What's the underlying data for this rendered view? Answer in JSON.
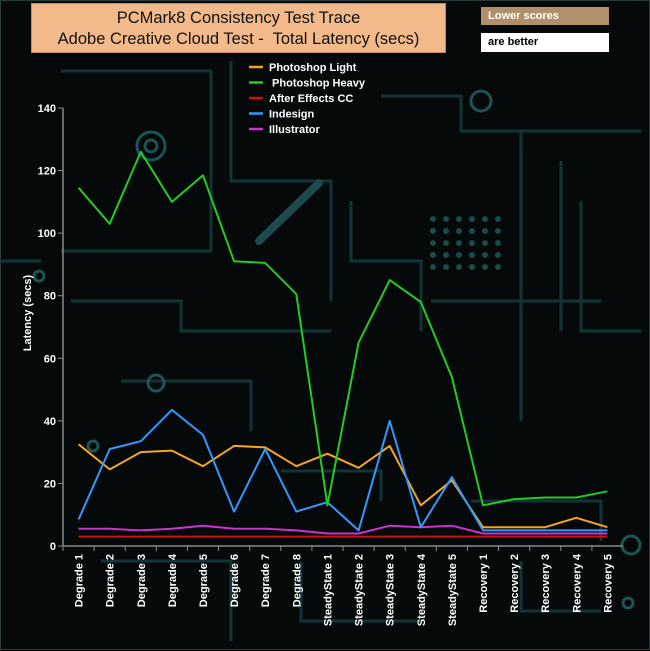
{
  "note": {
    "line1": "Lower scores",
    "line2": "are better"
  },
  "chart_data": {
    "type": "line",
    "title": "PCMark8 Consistency Test Trace",
    "subtitle": "Adobe Creative Cloud Test -  Total Latency (secs)",
    "xlabel": "",
    "ylabel": "Latency (secs)",
    "ylim": [
      0,
      140
    ],
    "yticks": [
      0,
      20,
      40,
      60,
      80,
      100,
      120,
      140
    ],
    "grid": false,
    "legend_position": "top-center",
    "categories": [
      "Degrade 1",
      "Degrade 2",
      "Degrade 3",
      "Degrade 4",
      "Degrade 5",
      "Degrade 6",
      "Degrade 7",
      "Degrade 8",
      "SteadyState 1",
      "SteadyState 2",
      "SteadyState 3",
      "SteadyState 4",
      "SteadyState 5",
      "Recovery 1",
      "Recovery 2",
      "Recovery 3",
      "Recovery 4",
      "Recovery 5"
    ],
    "series": [
      {
        "name": "Photoshop Light",
        "color": "#f5a623",
        "values": [
          32.5,
          24.5,
          30,
          30.5,
          25.5,
          32,
          31.5,
          25.5,
          29.5,
          25,
          32,
          13,
          21,
          6,
          6,
          6,
          9,
          6
        ]
      },
      {
        "name": " Photoshop Heavy",
        "color": "#22cc22",
        "values": [
          114.5,
          103,
          126,
          110,
          118.5,
          91,
          90.5,
          80.5,
          13,
          65,
          85,
          78,
          54,
          13,
          15,
          15.5,
          15.5,
          17.5
        ]
      },
      {
        "name": "After Effects CC",
        "color": "#cc1111",
        "values": [
          3,
          3,
          3,
          3,
          3,
          3,
          3,
          3,
          3,
          3,
          3,
          3,
          3,
          3,
          3,
          3,
          3,
          3
        ]
      },
      {
        "name": "Indesign",
        "color": "#3399ff",
        "values": [
          8.5,
          31,
          33.5,
          43.5,
          35.5,
          11,
          31,
          11,
          14,
          5,
          40,
          6,
          22,
          5,
          5,
          5,
          5,
          5
        ]
      },
      {
        "name": "Illustrator",
        "color": "#cc33cc",
        "values": [
          5.5,
          5.5,
          5,
          5.5,
          6.5,
          5.5,
          5.5,
          5,
          4,
          4,
          6.5,
          6,
          6.5,
          4,
          4,
          4,
          4,
          4
        ]
      }
    ]
  }
}
